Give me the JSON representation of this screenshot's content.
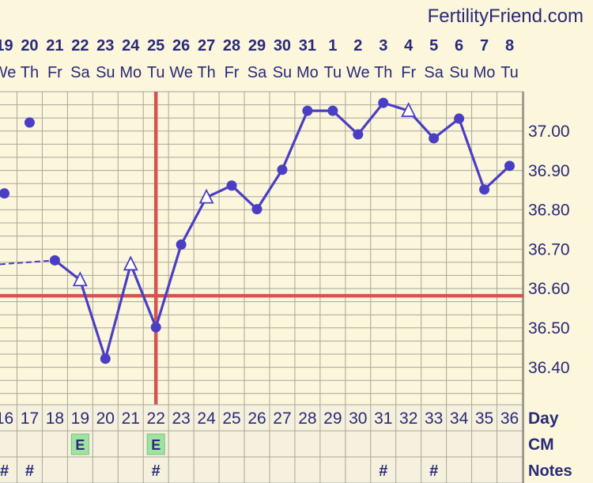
{
  "brand": "FertilityFriend.com",
  "colors": {
    "background": "#fbf6dc",
    "grid": "#a9a69a",
    "line": "#4a3ec4",
    "coverline": "#d45454",
    "cm_badge": "#9fe3a0",
    "row_bg": "#f5f1de"
  },
  "chart_data": {
    "type": "line",
    "title": "",
    "xlabel": "",
    "ylabel": "",
    "dates": [
      "19",
      "20",
      "21",
      "22",
      "23",
      "24",
      "25",
      "26",
      "27",
      "28",
      "29",
      "30",
      "31",
      "1",
      "2",
      "3",
      "4",
      "5",
      "6",
      "7",
      "8"
    ],
    "weekdays": [
      "We",
      "Th",
      "Fr",
      "Sa",
      "Su",
      "Mo",
      "Tu",
      "We",
      "Th",
      "Fr",
      "Sa",
      "Su",
      "Mo",
      "Tu",
      "We",
      "Th",
      "Fr",
      "Sa",
      "Su",
      "Mo",
      "Tu"
    ],
    "day_row_label": "Day",
    "days": [
      "16",
      "17",
      "18",
      "19",
      "20",
      "21",
      "22",
      "23",
      "24",
      "25",
      "26",
      "27",
      "28",
      "29",
      "30",
      "31",
      "32",
      "33",
      "34",
      "35",
      "36"
    ],
    "cm_row_label": "CM",
    "cm": [
      "",
      "",
      "",
      "E",
      "",
      "",
      "E",
      "",
      "",
      "",
      "",
      "",
      "",
      "",
      "",
      "",
      "",
      "",
      "",
      "",
      ""
    ],
    "notes_row_label": "Notes",
    "notes": [
      "#",
      "#",
      "",
      "",
      "",
      "",
      "#",
      "",
      "",
      "",
      "",
      "",
      "",
      "",
      "",
      "#",
      "",
      "#",
      "",
      "",
      ""
    ],
    "y_ticks": [
      "37.00",
      "36.90",
      "36.80",
      "36.70",
      "36.60",
      "36.50",
      "36.40"
    ],
    "ylim": [
      36.31,
      37.1
    ],
    "grid": true,
    "series": [
      {
        "values": [
          36.84,
          37.02,
          36.67,
          36.62,
          36.42,
          36.66,
          36.5,
          36.71,
          36.83,
          36.86,
          36.8,
          36.9,
          37.05,
          37.05,
          36.99,
          37.07,
          37.05,
          36.98,
          37.03,
          36.85,
          36.91
        ],
        "markers": [
          "circle",
          "circle",
          "circle",
          "triangle",
          "circle",
          "triangle",
          "circle",
          "circle",
          "triangle",
          "circle",
          "circle",
          "circle",
          "circle",
          "circle",
          "circle",
          "circle",
          "triangle",
          "circle",
          "circle",
          "circle",
          "circle"
        ],
        "connected_from_day": "18",
        "incoming_dashed_value": 36.66
      }
    ],
    "coverline": 36.58,
    "ovulation_day": "22"
  }
}
